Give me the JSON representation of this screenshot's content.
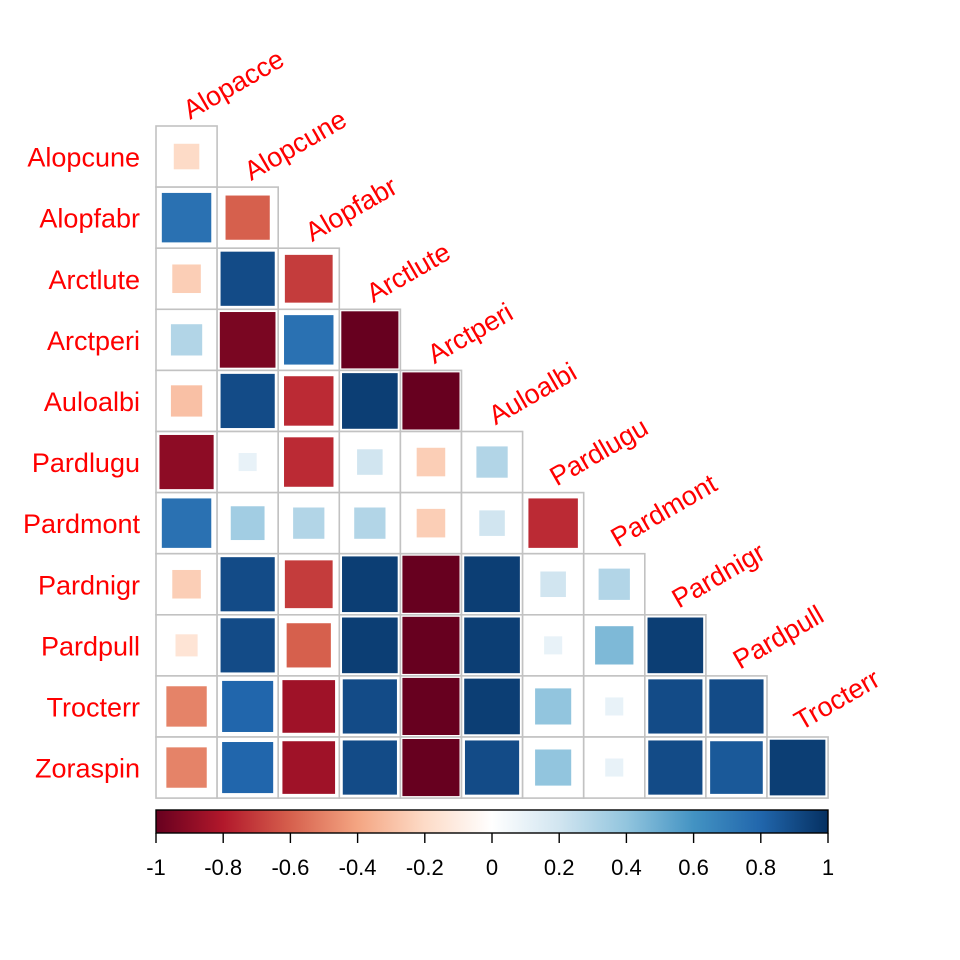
{
  "chart_data": {
    "type": "heatmap",
    "subtype": "correlation-matrix-lower-triangle",
    "method": "square",
    "cell_size_encodes": "absolute correlation",
    "title": "",
    "xlabel": "",
    "ylabel": "",
    "label_color": "#ff0000",
    "column_labels": [
      "Alopacce",
      "Alopcune",
      "Alopfabr",
      "Arctlute",
      "Arctperi",
      "Auloalbi",
      "Pardlugu",
      "Pardmont",
      "Pardnigr",
      "Pardpull",
      "Trocterr"
    ],
    "row_labels": [
      "Alopcune",
      "Alopfabr",
      "Arctlute",
      "Arctperi",
      "Auloalbi",
      "Pardlugu",
      "Pardmont",
      "Pardnigr",
      "Pardpull",
      "Trocterr",
      "Zoraspin"
    ],
    "values": [
      [
        -0.2
      ],
      [
        0.75,
        -0.6
      ],
      [
        -0.25,
        0.9,
        -0.7
      ],
      [
        0.3,
        -0.95,
        0.75,
        -1.0
      ],
      [
        -0.3,
        0.9,
        -0.75,
        0.95,
        -1.0
      ],
      [
        -0.9,
        0.1,
        -0.75,
        0.2,
        -0.25,
        0.3
      ],
      [
        0.75,
        0.35,
        0.3,
        0.3,
        -0.25,
        0.2,
        -0.75
      ],
      [
        -0.25,
        0.9,
        -0.7,
        0.95,
        -1.0,
        0.95,
        0.2,
        0.3
      ],
      [
        -0.15,
        0.9,
        -0.6,
        0.95,
        -1.0,
        0.95,
        0.1,
        0.45,
        0.95
      ],
      [
        -0.5,
        0.8,
        -0.85,
        0.9,
        -1.0,
        0.95,
        0.4,
        0.1,
        0.9,
        0.9
      ],
      [
        -0.5,
        0.8,
        -0.85,
        0.9,
        -1.0,
        0.9,
        0.4,
        0.1,
        0.9,
        0.85,
        0.95
      ]
    ],
    "colorbar": {
      "range": [
        -1,
        1
      ],
      "tick_values": [
        -1,
        -0.8,
        -0.6,
        -0.4,
        -0.2,
        0,
        0.2,
        0.4,
        0.6,
        0.8,
        1
      ],
      "tick_labels": [
        "-1",
        "-0.8",
        "-0.6",
        "-0.4",
        "-0.2",
        "0",
        "0.2",
        "0.4",
        "0.6",
        "0.8",
        "1"
      ],
      "colors": [
        "#67001f",
        "#b2182b",
        "#d6604d",
        "#f4a582",
        "#fddbc7",
        "#ffffff",
        "#d1e5f0",
        "#92c5de",
        "#4393c3",
        "#2166ac",
        "#053061"
      ]
    }
  }
}
